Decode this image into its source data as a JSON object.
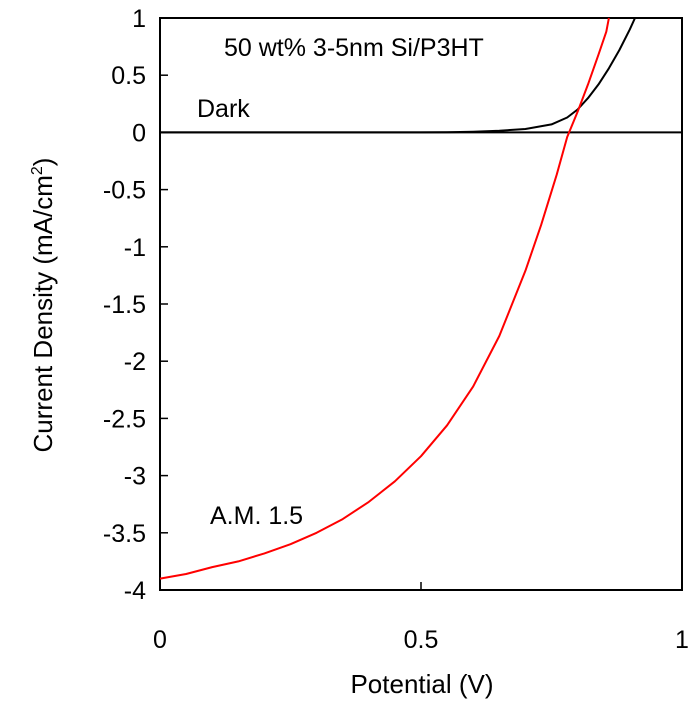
{
  "chart_data": {
    "type": "line",
    "title": "",
    "xlabel": "Potential (V)",
    "ylabel_main": "Current Density (mA/cm",
    "ylabel_sup": "2",
    "ylabel_close": ")",
    "xlim": [
      0,
      1
    ],
    "ylim": [
      -4,
      1
    ],
    "xticks": [
      "0",
      "0.5",
      "1"
    ],
    "yticks": [
      "1",
      "0.5",
      "0",
      "-0.5",
      "-1",
      "-1.5",
      "-2",
      "-2.5",
      "-3",
      "-3.5",
      "-4"
    ],
    "grid": false,
    "zero_line": true,
    "annotations": {
      "sample": "50 wt% 3-5nm Si/P3HT",
      "dark": "Dark",
      "light": "A.M. 1.5"
    },
    "series": [
      {
        "name": "Dark",
        "color": "#000000",
        "x": [
          0,
          0.1,
          0.2,
          0.3,
          0.4,
          0.5,
          0.55,
          0.6,
          0.65,
          0.7,
          0.75,
          0.78,
          0.8,
          0.82,
          0.84,
          0.86,
          0.88,
          0.9,
          0.91
        ],
        "y": [
          0,
          0,
          0,
          0,
          0,
          0,
          0.002,
          0.006,
          0.015,
          0.03,
          0.07,
          0.13,
          0.2,
          0.3,
          0.42,
          0.56,
          0.72,
          0.9,
          1.0
        ]
      },
      {
        "name": "A.M. 1.5",
        "color": "#ff0000",
        "x": [
          0,
          0.05,
          0.1,
          0.15,
          0.2,
          0.25,
          0.3,
          0.35,
          0.4,
          0.45,
          0.5,
          0.55,
          0.6,
          0.65,
          0.7,
          0.73,
          0.76,
          0.78,
          0.8,
          0.82,
          0.84,
          0.855,
          0.86
        ],
        "y": [
          -3.9,
          -3.86,
          -3.8,
          -3.75,
          -3.68,
          -3.6,
          -3.5,
          -3.38,
          -3.23,
          -3.05,
          -2.83,
          -2.56,
          -2.22,
          -1.78,
          -1.21,
          -0.81,
          -0.37,
          -0.04,
          0.18,
          0.42,
          0.68,
          0.88,
          1.0
        ]
      }
    ]
  }
}
